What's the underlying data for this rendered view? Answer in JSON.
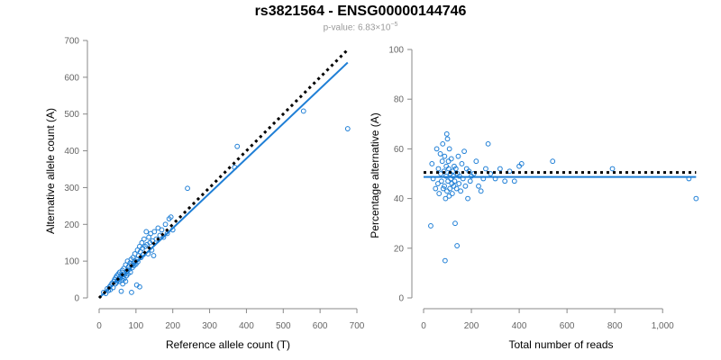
{
  "title": "rs3821564 - ENSG00000144746",
  "subtitle": {
    "prefix": "p-value: 6.83×10",
    "exponent": "−5"
  },
  "colors": {
    "accent": "#1f7fd6",
    "reference": "#000000",
    "axis": "#888888",
    "tick_text": "#666666"
  },
  "chart_data": [
    {
      "type": "scatter",
      "xlabel": "Reference allele count (T)",
      "ylabel": "Alternative allele count (A)",
      "xlim": [
        0,
        700
      ],
      "ylim": [
        0,
        700
      ],
      "xticks": [
        0,
        100,
        200,
        300,
        400,
        500,
        600,
        700
      ],
      "yticks": [
        0,
        100,
        200,
        300,
        400,
        500,
        600,
        700
      ],
      "xtick_labels": [
        "0",
        "100",
        "200",
        "300",
        "400",
        "500",
        "600",
        "700"
      ],
      "ytick_labels": [
        "0",
        "100",
        "200",
        "300",
        "400",
        "500",
        "600",
        "700"
      ],
      "points": [
        [
          12,
          15
        ],
        [
          18,
          12
        ],
        [
          22,
          25
        ],
        [
          25,
          20
        ],
        [
          28,
          30
        ],
        [
          30,
          22
        ],
        [
          32,
          35
        ],
        [
          35,
          40
        ],
        [
          38,
          28
        ],
        [
          40,
          45
        ],
        [
          42,
          50
        ],
        [
          44,
          38
        ],
        [
          45,
          55
        ],
        [
          47,
          42
        ],
        [
          48,
          60
        ],
        [
          50,
          48
        ],
        [
          52,
          65
        ],
        [
          53,
          52
        ],
        [
          55,
          45
        ],
        [
          56,
          70
        ],
        [
          58,
          55
        ],
        [
          60,
          62
        ],
        [
          62,
          48
        ],
        [
          63,
          75
        ],
        [
          65,
          58
        ],
        [
          67,
          80
        ],
        [
          68,
          52
        ],
        [
          70,
          66
        ],
        [
          72,
          90
        ],
        [
          74,
          60
        ],
        [
          75,
          72
        ],
        [
          77,
          100
        ],
        [
          78,
          65
        ],
        [
          80,
          85
        ],
        [
          82,
          78
        ],
        [
          84,
          95
        ],
        [
          85,
          70
        ],
        [
          87,
          105
        ],
        [
          88,
          90
        ],
        [
          90,
          82
        ],
        [
          92,
          110
        ],
        [
          94,
          95
        ],
        [
          95,
          88
        ],
        [
          97,
          120
        ],
        [
          98,
          100
        ],
        [
          100,
          92
        ],
        [
          102,
          105
        ],
        [
          104,
          130
        ],
        [
          105,
          98
        ],
        [
          107,
          115
        ],
        [
          110,
          140
        ],
        [
          112,
          125
        ],
        [
          114,
          110
        ],
        [
          116,
          150
        ],
        [
          118,
          135
        ],
        [
          120,
          118
        ],
        [
          122,
          160
        ],
        [
          125,
          140
        ],
        [
          128,
          180
        ],
        [
          130,
          145
        ],
        [
          133,
          120
        ],
        [
          135,
          165
        ],
        [
          138,
          150
        ],
        [
          140,
          175
        ],
        [
          143,
          130
        ],
        [
          145,
          155
        ],
        [
          148,
          115
        ],
        [
          150,
          180
        ],
        [
          155,
          160
        ],
        [
          160,
          190
        ],
        [
          165,
          170
        ],
        [
          170,
          185
        ],
        [
          175,
          165
        ],
        [
          180,
          200
        ],
        [
          185,
          175
        ],
        [
          190,
          215
        ],
        [
          195,
          220
        ],
        [
          200,
          185
        ],
        [
          240,
          298
        ],
        [
          368,
          355
        ],
        [
          375,
          412
        ],
        [
          555,
          508
        ],
        [
          675,
          460
        ],
        [
          60,
          18
        ],
        [
          88,
          15
        ],
        [
          102,
          35
        ],
        [
          110,
          30
        ],
        [
          72,
          45
        ],
        [
          64,
          38
        ]
      ],
      "series": [
        {
          "style": "solid",
          "color": "#1f7fd6",
          "x": [
            0,
            675
          ],
          "y": [
            0,
            640
          ]
        },
        {
          "style": "dotted",
          "color": "#000000",
          "x": [
            0,
            675
          ],
          "y": [
            0,
            675
          ]
        }
      ]
    },
    {
      "type": "scatter",
      "xlabel": "Total number of reads",
      "ylabel": "Percentage alternative (A)",
      "xlim": [
        0,
        1150
      ],
      "ylim": [
        0,
        100
      ],
      "xticks": [
        0,
        200,
        400,
        600,
        800,
        1000
      ],
      "yticks": [
        0,
        20,
        40,
        60,
        80,
        100
      ],
      "xtick_labels": [
        "0",
        "200",
        "400",
        "600",
        "800",
        "1,000"
      ],
      "ytick_labels": [
        "0",
        "20",
        "40",
        "60",
        "80",
        "100"
      ],
      "points": [
        [
          30,
          29
        ],
        [
          35,
          54
        ],
        [
          40,
          48
        ],
        [
          50,
          44
        ],
        [
          55,
          60
        ],
        [
          60,
          46
        ],
        [
          62,
          52
        ],
        [
          65,
          42
        ],
        [
          70,
          58
        ],
        [
          72,
          50
        ],
        [
          75,
          47
        ],
        [
          78,
          55
        ],
        [
          80,
          62
        ],
        [
          82,
          44
        ],
        [
          85,
          51
        ],
        [
          87,
          45
        ],
        [
          88,
          57
        ],
        [
          90,
          15
        ],
        [
          92,
          40
        ],
        [
          94,
          49
        ],
        [
          95,
          53
        ],
        [
          97,
          66
        ],
        [
          98,
          43
        ],
        [
          100,
          64
        ],
        [
          102,
          47
        ],
        [
          104,
          55
        ],
        [
          105,
          52
        ],
        [
          107,
          41
        ],
        [
          108,
          60
        ],
        [
          110,
          44
        ],
        [
          112,
          50
        ],
        [
          114,
          48
        ],
        [
          116,
          56
        ],
        [
          118,
          46
        ],
        [
          120,
          42
        ],
        [
          122,
          51
        ],
        [
          124,
          49
        ],
        [
          126,
          45
        ],
        [
          128,
          53
        ],
        [
          130,
          47
        ],
        [
          132,
          30
        ],
        [
          135,
          52
        ],
        [
          138,
          44
        ],
        [
          140,
          21
        ],
        [
          142,
          50
        ],
        [
          145,
          57
        ],
        [
          148,
          46
        ],
        [
          150,
          49
        ],
        [
          155,
          43
        ],
        [
          160,
          54
        ],
        [
          165,
          48
        ],
        [
          170,
          59
        ],
        [
          175,
          45
        ],
        [
          180,
          52
        ],
        [
          185,
          40
        ],
        [
          190,
          51
        ],
        [
          195,
          47
        ],
        [
          200,
          49
        ],
        [
          210,
          50
        ],
        [
          220,
          55
        ],
        [
          230,
          45
        ],
        [
          240,
          43
        ],
        [
          250,
          48
        ],
        [
          260,
          52
        ],
        [
          270,
          62
        ],
        [
          280,
          50
        ],
        [
          300,
          48
        ],
        [
          320,
          52
        ],
        [
          340,
          47
        ],
        [
          360,
          51
        ],
        [
          380,
          47
        ],
        [
          400,
          53
        ],
        [
          410,
          54
        ],
        [
          540,
          55
        ],
        [
          790,
          52
        ],
        [
          1110,
          48
        ],
        [
          1140,
          40
        ]
      ],
      "series": [
        {
          "style": "solid",
          "color": "#1f7fd6",
          "x": [
            0,
            1140
          ],
          "y": [
            48.7,
            48.7
          ]
        },
        {
          "style": "dotted",
          "color": "#000000",
          "x": [
            0,
            1140
          ],
          "y": [
            50.5,
            50.5
          ]
        }
      ]
    }
  ]
}
